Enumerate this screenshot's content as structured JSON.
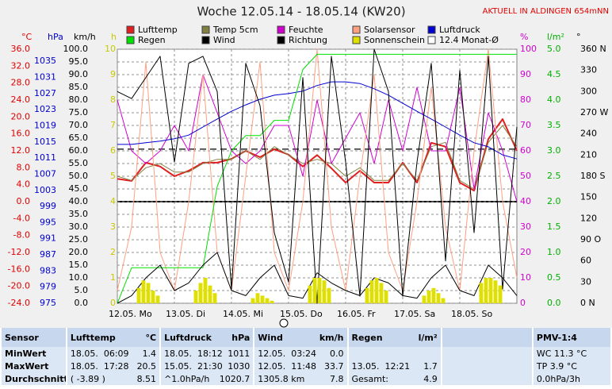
{
  "chart_data": {
    "type": "line",
    "title": "Woche 12.05.14 - 18.05.14 (KW20)",
    "notice": "AKTUELL IN ALDINGEN 654mNN",
    "xlim": [
      0,
      168
    ],
    "xticks": [
      {
        "value": 0,
        "label": "12.05. Mo"
      },
      {
        "value": 24,
        "label": "13.05. Di"
      },
      {
        "value": 48,
        "label": "14.05. Mi"
      },
      {
        "value": 72,
        "label": "15.05. Do"
      },
      {
        "value": 96,
        "label": "16.05. Fr"
      },
      {
        "value": 120,
        "label": "17.05. Sa"
      },
      {
        "value": 144,
        "label": "18.05. So"
      }
    ],
    "x": [
      0,
      6,
      12,
      18,
      24,
      30,
      36,
      42,
      48,
      54,
      60,
      66,
      72,
      78,
      84,
      90,
      96,
      102,
      108,
      114,
      120,
      126,
      132,
      138,
      144,
      150,
      156,
      162,
      168
    ],
    "axes": [
      {
        "label": "°C",
        "side": "left",
        "color": "#e00000",
        "lim": [
          -24,
          36
        ],
        "zero_line": true,
        "ticks": [
          {
            "value": 36,
            "label": "36.0"
          },
          {
            "value": 32,
            "label": "32.0"
          },
          {
            "value": 28,
            "label": "28.0"
          },
          {
            "value": 24,
            "label": "24.0"
          },
          {
            "value": 20,
            "label": "20.0"
          },
          {
            "value": 16,
            "label": "16.0"
          },
          {
            "value": 12,
            "label": "12.0"
          },
          {
            "value": 8,
            "label": "8.0"
          },
          {
            "value": 4,
            "label": "4.0"
          },
          {
            "value": 0,
            "label": "0.0"
          },
          {
            "value": -4,
            "label": "-4.0"
          },
          {
            "value": -8,
            "label": "-8.0"
          },
          {
            "value": -12,
            "label": "-12.0"
          },
          {
            "value": -16,
            "label": "-16.0"
          },
          {
            "value": -20,
            "label": "-20.0"
          },
          {
            "value": -24,
            "label": "-24.0"
          }
        ]
      },
      {
        "label": "hPa",
        "side": "left",
        "color": "#0000d0",
        "lim": [
          975,
          1038
        ],
        "ticks": [
          1035,
          1031,
          1027,
          1023,
          1019,
          1015,
          1011,
          1007,
          1003,
          999,
          995,
          991,
          987,
          983,
          979,
          975
        ]
      },
      {
        "label": "km/h",
        "side": "left",
        "color": "#000000",
        "lim": [
          0,
          100
        ],
        "grid": true,
        "ticks": [
          {
            "value": 100,
            "label": "100.0"
          },
          {
            "value": 95,
            "label": "95.0"
          },
          {
            "value": 90,
            "label": "90.0"
          },
          {
            "value": 85,
            "label": "85.0"
          },
          {
            "value": 80,
            "label": "80.0"
          },
          {
            "value": 75,
            "label": "75.0"
          },
          {
            "value": 70,
            "label": "70.0"
          },
          {
            "value": 65,
            "label": "65.0"
          },
          {
            "value": 60,
            "label": "60.0"
          },
          {
            "value": 55,
            "label": "55.0"
          },
          {
            "value": 50,
            "label": "50.0"
          },
          {
            "value": 45,
            "label": "45.0"
          },
          {
            "value": 40,
            "label": "40.0"
          },
          {
            "value": 35,
            "label": "35.0"
          },
          {
            "value": 30,
            "label": "30.0"
          },
          {
            "value": 25,
            "label": "25.0"
          },
          {
            "value": 20,
            "label": "20.0"
          },
          {
            "value": 15,
            "label": "15.0"
          },
          {
            "value": 10,
            "label": "10.0"
          },
          {
            "value": 5,
            "label": "5.0"
          },
          {
            "value": 0,
            "label": "0.0"
          }
        ]
      },
      {
        "label": "h",
        "side": "left",
        "color": "#c8c800",
        "lim": [
          0,
          10
        ],
        "ticks": [
          10,
          9,
          8,
          7,
          6,
          5,
          4,
          3,
          2,
          1,
          0
        ]
      },
      {
        "label": "%",
        "side": "right",
        "color": "#d000d0",
        "lim": [
          0,
          100
        ],
        "ticks": [
          100,
          90,
          80,
          70,
          60,
          50,
          40,
          30,
          20,
          10,
          0
        ]
      },
      {
        "label": "l/m²",
        "side": "right",
        "color": "#00b000",
        "lim": [
          0,
          5
        ],
        "ticks": [
          {
            "value": 5,
            "label": "5.0"
          },
          {
            "value": 4.5,
            "label": "4.5"
          },
          {
            "value": 4,
            "label": "4.0"
          },
          {
            "value": 3.5,
            "label": "3.5"
          },
          {
            "value": 3,
            "label": "3.0"
          },
          {
            "value": 2.5,
            "label": "2.5"
          },
          {
            "value": 2,
            "label": "2.0"
          },
          {
            "value": 1.5,
            "label": "1.5"
          },
          {
            "value": 1,
            "label": "1.0"
          },
          {
            "value": 0.5,
            "label": "0.5"
          },
          {
            "value": 0,
            "label": "0.0"
          }
        ]
      },
      {
        "label": "°",
        "side": "right",
        "color": "#000000",
        "lim": [
          0,
          360
        ],
        "ticks": [
          {
            "value": 360,
            "label": "360 N"
          },
          330,
          300,
          {
            "value": 270,
            "label": "270 W"
          },
          240,
          210,
          {
            "value": 180,
            "label": "180 S"
          },
          150,
          120,
          {
            "value": 90,
            "label": "90 O"
          },
          60,
          30,
          {
            "value": 0,
            "label": "0 N"
          }
        ]
      }
    ],
    "series": [
      {
        "name": "Lufttemp",
        "color": "#e02020",
        "axis": "°C",
        "width": 2,
        "values": [
          5.4,
          4.9,
          9.2,
          8.3,
          6.0,
          7.3,
          9.2,
          9.2,
          10.1,
          12.0,
          10.5,
          12.4,
          11.1,
          8.3,
          11.0,
          7.9,
          4.5,
          7.3,
          4.5,
          4.5,
          9.2,
          4.5,
          13.9,
          13.0,
          4.5,
          2.6,
          14.8,
          19.5,
          12.0
        ]
      },
      {
        "name": "Temp 5cm",
        "color": "#808040",
        "axis": "°C",
        "width": 1,
        "values": [
          6,
          5,
          8,
          9,
          7,
          7,
          9,
          10,
          10,
          12,
          10,
          13,
          11,
          9,
          10,
          9,
          6,
          8,
          5,
          5,
          9,
          5,
          13,
          14,
          5,
          3,
          14,
          18,
          13
        ]
      },
      {
        "name": "Feuchte",
        "color": "#d000d0",
        "axis": "%",
        "width": 1,
        "values": [
          80,
          60,
          55,
          60,
          70,
          60,
          90,
          75,
          60,
          55,
          60,
          70,
          70,
          50,
          80,
          55,
          65,
          75,
          55,
          80,
          60,
          85,
          60,
          60,
          85,
          45,
          75,
          60,
          40
        ]
      },
      {
        "name": "Solarsensor",
        "color": "#ffa080",
        "axis": "%",
        "width": 1,
        "values": [
          5,
          30,
          95,
          20,
          5,
          40,
          90,
          20,
          5,
          50,
          95,
          20,
          5,
          40,
          100,
          30,
          5,
          50,
          90,
          20,
          5,
          40,
          85,
          30,
          5,
          60,
          100,
          40,
          10
        ]
      },
      {
        "name": "Luftdruck",
        "color": "#0000d0",
        "axis": "hPa",
        "width": 1,
        "values": [
          1014.4,
          1014.4,
          1014.8,
          1015.2,
          1015.8,
          1016.7,
          1018.7,
          1020.7,
          1022.6,
          1024.2,
          1025.6,
          1026.6,
          1027.0,
          1027.6,
          1029.0,
          1029.9,
          1029.9,
          1029.5,
          1028.2,
          1026.6,
          1024.6,
          1022.6,
          1020.7,
          1018.7,
          1016.7,
          1014.8,
          1013.8,
          1011.8,
          1010.8
        ]
      },
      {
        "name": "Regen",
        "color": "#00e000",
        "axis": "l/m²",
        "width": 1,
        "values": [
          0,
          0.7,
          0.7,
          0.7,
          0.7,
          0.7,
          0.7,
          2.3,
          3.0,
          3.3,
          3.3,
          3.6,
          3.6,
          4.6,
          4.9,
          4.9,
          4.9,
          4.9,
          4.9,
          4.9,
          4.9,
          4.9,
          4.9,
          4.9,
          4.9,
          4.9,
          4.9,
          4.9,
          4.9
        ]
      },
      {
        "name": "Wind",
        "color": "#000000",
        "axis": "km/h",
        "width": 1,
        "values": [
          0,
          3,
          10,
          15,
          5,
          8,
          15,
          20,
          5,
          3,
          10,
          15,
          3,
          2,
          12,
          8,
          5,
          3,
          10,
          8,
          3,
          2,
          10,
          15,
          5,
          3,
          15,
          10,
          3
        ]
      },
      {
        "name": "Richtung",
        "color": "#000000",
        "axis": "°",
        "width": 1,
        "values": [
          300,
          290,
          320,
          350,
          200,
          340,
          350,
          300,
          20,
          340,
          280,
          100,
          30,
          320,
          0,
          350,
          200,
          10,
          360,
          300,
          10,
          200,
          340,
          60,
          330,
          100,
          350,
          20,
          250
        ]
      },
      {
        "name": "Sonnenschein",
        "color": "#e0e000",
        "axis": "h",
        "type": "bar",
        "bar_width": 2,
        "x": [
          9,
          11,
          13,
          15,
          17,
          33,
          35,
          37,
          39,
          41,
          57,
          59,
          61,
          63,
          65,
          81,
          83,
          85,
          87,
          89,
          105,
          107,
          109,
          111,
          113,
          129,
          131,
          133,
          135,
          137,
          153,
          155,
          157,
          159,
          161
        ],
        "values": [
          0.6,
          0.9,
          0.8,
          0.5,
          0.3,
          0.5,
          0.8,
          1.0,
          0.7,
          0.4,
          0.2,
          0.4,
          0.3,
          0.2,
          0.1,
          0.7,
          1.0,
          1.0,
          0.9,
          0.6,
          0.6,
          0.9,
          1.0,
          0.8,
          0.5,
          0.3,
          0.5,
          0.6,
          0.4,
          0.2,
          0.8,
          1.0,
          1.0,
          0.9,
          0.7
        ]
      }
    ],
    "reference_lines": [
      {
        "name": "12.4 Monat-Ø",
        "value": 12.4,
        "axis": "°C",
        "color": "#000000",
        "style": "dashed"
      }
    ]
  },
  "table": {
    "corner": "Sensor",
    "row_labels": [
      "MinWert",
      "MaxWert",
      "Durchschnitt"
    ],
    "columns": [
      {
        "title": "Lufttemp",
        "unit": "°C",
        "cells": [
          [
            "18.05.  06:09",
            "1.4"
          ],
          [
            "18.05.  17:28",
            "20.5"
          ],
          [
            "( -3.89 )",
            "8.51"
          ]
        ]
      },
      {
        "title": "Luftdruck",
        "unit": "hPa",
        "cells": [
          [
            "18.05.  18:12",
            "1011"
          ],
          [
            "15.05.  21:30",
            "1030"
          ],
          [
            "^1.0hPa/h",
            "1020.7"
          ]
        ]
      },
      {
        "title": "Wind",
        "unit": "km/h",
        "cells": [
          [
            "12.05.  03:24",
            "0.0"
          ],
          [
            "12.05.  11:48",
            "33.7"
          ],
          [
            "1305.8 km",
            "7.8"
          ]
        ]
      },
      {
        "title": "Regen",
        "unit": "l/m²",
        "cells": [
          null,
          [
            "13.05.  12:21",
            "1.7"
          ],
          [
            "Gesamt:",
            "4.9"
          ]
        ]
      }
    ],
    "pmv": {
      "title": "PMV-1:4",
      "lines": [
        "WC 11.3 °C",
        "TP 3.9 °C",
        "0.0hPa/3h"
      ]
    }
  }
}
